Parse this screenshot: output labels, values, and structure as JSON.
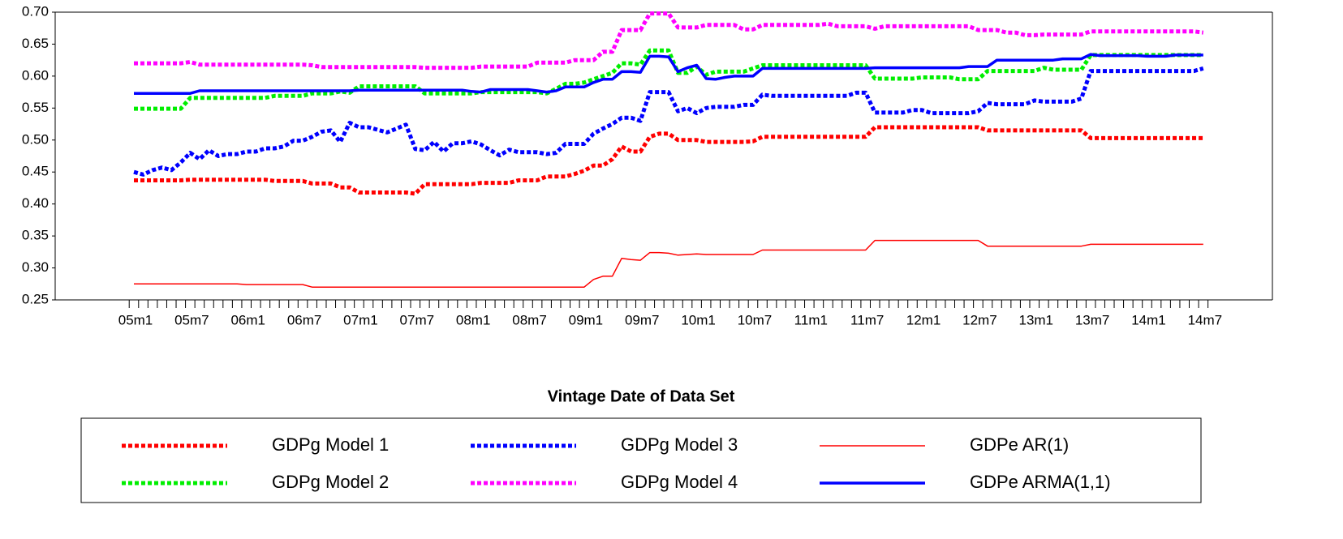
{
  "chart_data": {
    "type": "line",
    "x_label": "Vintage Date of Data Set",
    "categories": [
      "05m1",
      null,
      null,
      null,
      null,
      null,
      "05m7",
      null,
      null,
      null,
      null,
      null,
      "06m1",
      null,
      null,
      null,
      null,
      null,
      "06m7",
      null,
      null,
      null,
      null,
      null,
      "07m1",
      null,
      null,
      null,
      null,
      null,
      "07m7",
      null,
      null,
      null,
      null,
      null,
      "08m1",
      null,
      null,
      null,
      null,
      null,
      "08m7",
      null,
      null,
      null,
      null,
      null,
      "09m1",
      null,
      null,
      null,
      null,
      null,
      "09m7",
      null,
      null,
      null,
      null,
      null,
      "10m1",
      null,
      null,
      null,
      null,
      null,
      "10m7",
      null,
      null,
      null,
      null,
      null,
      "11m1",
      null,
      null,
      null,
      null,
      null,
      "11m7",
      null,
      null,
      null,
      null,
      null,
      "12m1",
      null,
      null,
      null,
      null,
      null,
      "12m7",
      null,
      null,
      null,
      null,
      null,
      "13m1",
      null,
      null,
      null,
      null,
      null,
      "13m7",
      null,
      null,
      null,
      null,
      null,
      "14m1",
      null,
      null,
      null,
      null,
      null,
      "14m7"
    ],
    "ylim": [
      0.25,
      0.7
    ],
    "yticks": [
      0.25,
      {
        "value": 0.3,
        "label": "0.30"
      },
      0.35,
      {
        "value": 0.4,
        "label": "0.40"
      },
      0.45,
      {
        "value": 0.5,
        "label": "0.50"
      },
      0.55,
      {
        "value": 0.6,
        "label": "0.60"
      },
      0.65,
      {
        "value": 0.7,
        "label": "0.70"
      }
    ],
    "grid": false,
    "legend_position": "bottom",
    "series": [
      {
        "name": "GDPg Model 1",
        "color": "#ff0000",
        "line_style": "dotted",
        "values": [
          0.437,
          0.437,
          0.437,
          0.437,
          0.437,
          0.437,
          0.438,
          0.438,
          0.438,
          0.438,
          0.438,
          0.438,
          0.438,
          0.438,
          0.438,
          0.436,
          0.436,
          0.436,
          0.436,
          0.432,
          0.432,
          0.432,
          0.426,
          0.426,
          0.418,
          0.418,
          0.418,
          0.418,
          0.418,
          0.418,
          0.416,
          0.431,
          0.431,
          0.431,
          0.431,
          0.431,
          0.431,
          0.433,
          0.433,
          0.433,
          0.433,
          0.437,
          0.437,
          0.437,
          0.443,
          0.443,
          0.443,
          0.447,
          0.452,
          0.46,
          0.46,
          0.47,
          0.49,
          0.482,
          0.482,
          0.505,
          0.51,
          0.51,
          0.5,
          0.5,
          0.5,
          0.497,
          0.497,
          0.497,
          0.497,
          0.497,
          0.498,
          0.505,
          0.505,
          0.505,
          0.505,
          0.505,
          0.505,
          0.505,
          0.505,
          0.505,
          0.505,
          0.505,
          0.505,
          0.52,
          0.52,
          0.52,
          0.52,
          0.52,
          0.52,
          0.52,
          0.52,
          0.52,
          0.52,
          0.52,
          0.52,
          0.515,
          0.515,
          0.515,
          0.515,
          0.515,
          0.515,
          0.515,
          0.515,
          0.515,
          0.515,
          0.515,
          0.503,
          0.503,
          0.503,
          0.503,
          0.503,
          0.503,
          0.503,
          0.503,
          0.503,
          0.503,
          0.503,
          0.503,
          0.503
        ]
      },
      {
        "name": "GDPg Model 2",
        "color": "#00ee00",
        "line_style": "dotted",
        "values": [
          0.549,
          0.549,
          0.549,
          0.549,
          0.549,
          0.549,
          0.566,
          0.566,
          0.566,
          0.566,
          0.566,
          0.566,
          0.566,
          0.566,
          0.566,
          0.569,
          0.569,
          0.569,
          0.569,
          0.573,
          0.573,
          0.573,
          0.576,
          0.574,
          0.584,
          0.584,
          0.584,
          0.584,
          0.584,
          0.584,
          0.584,
          0.573,
          0.573,
          0.573,
          0.573,
          0.573,
          0.573,
          0.575,
          0.575,
          0.575,
          0.575,
          0.575,
          0.575,
          0.575,
          0.573,
          0.58,
          0.588,
          0.588,
          0.59,
          0.595,
          0.6,
          0.605,
          0.62,
          0.62,
          0.618,
          0.64,
          0.64,
          0.64,
          0.605,
          0.605,
          0.615,
          0.602,
          0.607,
          0.607,
          0.607,
          0.607,
          0.612,
          0.617,
          0.617,
          0.617,
          0.617,
          0.617,
          0.617,
          0.617,
          0.617,
          0.617,
          0.617,
          0.617,
          0.617,
          0.596,
          0.596,
          0.596,
          0.596,
          0.596,
          0.598,
          0.598,
          0.598,
          0.598,
          0.595,
          0.595,
          0.595,
          0.608,
          0.608,
          0.608,
          0.608,
          0.608,
          0.608,
          0.613,
          0.61,
          0.61,
          0.61,
          0.61,
          0.633,
          0.633,
          0.633,
          0.633,
          0.633,
          0.633,
          0.633,
          0.633,
          0.633,
          0.633,
          0.633,
          0.633,
          0.633
        ]
      },
      {
        "name": "GDPg Model 3",
        "color": "#0000ff",
        "line_style": "dotted",
        "values": [
          0.45,
          0.446,
          0.453,
          0.457,
          0.453,
          0.465,
          0.48,
          0.47,
          0.484,
          0.475,
          0.478,
          0.478,
          0.482,
          0.482,
          0.487,
          0.487,
          0.49,
          0.499,
          0.499,
          0.505,
          0.513,
          0.515,
          0.497,
          0.527,
          0.52,
          0.52,
          0.516,
          0.512,
          0.518,
          0.524,
          0.486,
          0.484,
          0.497,
          0.482,
          0.495,
          0.495,
          0.498,
          0.493,
          0.484,
          0.476,
          0.485,
          0.481,
          0.481,
          0.481,
          0.478,
          0.48,
          0.494,
          0.494,
          0.494,
          0.51,
          0.518,
          0.525,
          0.535,
          0.535,
          0.53,
          0.575,
          0.575,
          0.575,
          0.545,
          0.55,
          0.542,
          0.55,
          0.552,
          0.552,
          0.552,
          0.555,
          0.555,
          0.571,
          0.569,
          0.569,
          0.569,
          0.569,
          0.569,
          0.569,
          0.569,
          0.569,
          0.569,
          0.574,
          0.574,
          0.543,
          0.543,
          0.543,
          0.543,
          0.547,
          0.547,
          0.542,
          0.542,
          0.542,
          0.542,
          0.542,
          0.545,
          0.558,
          0.556,
          0.556,
          0.556,
          0.556,
          0.562,
          0.56,
          0.56,
          0.56,
          0.56,
          0.565,
          0.608,
          0.608,
          0.608,
          0.608,
          0.608,
          0.608,
          0.608,
          0.608,
          0.608,
          0.608,
          0.608,
          0.608,
          0.612
        ]
      },
      {
        "name": "GDPg Model 4",
        "color": "#ff00ff",
        "line_style": "dotted",
        "values": [
          0.62,
          0.62,
          0.62,
          0.62,
          0.62,
          0.62,
          0.622,
          0.618,
          0.618,
          0.618,
          0.618,
          0.618,
          0.618,
          0.618,
          0.618,
          0.618,
          0.618,
          0.618,
          0.618,
          0.617,
          0.614,
          0.614,
          0.614,
          0.614,
          0.614,
          0.614,
          0.614,
          0.614,
          0.614,
          0.614,
          0.614,
          0.613,
          0.613,
          0.613,
          0.613,
          0.613,
          0.613,
          0.615,
          0.615,
          0.615,
          0.615,
          0.615,
          0.615,
          0.621,
          0.621,
          0.621,
          0.621,
          0.625,
          0.625,
          0.625,
          0.638,
          0.638,
          0.672,
          0.672,
          0.672,
          0.698,
          0.698,
          0.698,
          0.676,
          0.676,
          0.676,
          0.68,
          0.68,
          0.68,
          0.68,
          0.673,
          0.673,
          0.68,
          0.68,
          0.68,
          0.68,
          0.68,
          0.68,
          0.68,
          0.682,
          0.678,
          0.678,
          0.678,
          0.678,
          0.674,
          0.678,
          0.678,
          0.678,
          0.678,
          0.678,
          0.678,
          0.678,
          0.678,
          0.678,
          0.678,
          0.672,
          0.672,
          0.672,
          0.668,
          0.668,
          0.664,
          0.664,
          0.665,
          0.665,
          0.665,
          0.665,
          0.665,
          0.67,
          0.67,
          0.67,
          0.67,
          0.67,
          0.67,
          0.67,
          0.67,
          0.67,
          0.67,
          0.67,
          0.67,
          0.668
        ]
      },
      {
        "name": "GDPe AR(1)",
        "color": "#ff0000",
        "line_style": "thin",
        "values": [
          0.275,
          0.275,
          0.275,
          0.275,
          0.275,
          0.275,
          0.275,
          0.275,
          0.275,
          0.275,
          0.275,
          0.275,
          0.274,
          0.274,
          0.274,
          0.274,
          0.274,
          0.274,
          0.274,
          0.27,
          0.27,
          0.27,
          0.27,
          0.27,
          0.27,
          0.27,
          0.27,
          0.27,
          0.27,
          0.27,
          0.27,
          0.27,
          0.27,
          0.27,
          0.27,
          0.27,
          0.27,
          0.27,
          0.27,
          0.27,
          0.27,
          0.27,
          0.27,
          0.27,
          0.27,
          0.27,
          0.27,
          0.27,
          0.27,
          0.282,
          0.287,
          0.287,
          0.315,
          0.313,
          0.312,
          0.324,
          0.324,
          0.323,
          0.32,
          0.321,
          0.322,
          0.321,
          0.321,
          0.321,
          0.321,
          0.321,
          0.321,
          0.328,
          0.328,
          0.328,
          0.328,
          0.328,
          0.328,
          0.328,
          0.328,
          0.328,
          0.328,
          0.328,
          0.328,
          0.343,
          0.343,
          0.343,
          0.343,
          0.343,
          0.343,
          0.343,
          0.343,
          0.343,
          0.343,
          0.343,
          0.343,
          0.334,
          0.334,
          0.334,
          0.334,
          0.334,
          0.334,
          0.334,
          0.334,
          0.334,
          0.334,
          0.334,
          0.337,
          0.337,
          0.337,
          0.337,
          0.337,
          0.337,
          0.337,
          0.337,
          0.337,
          0.337,
          0.337,
          0.337,
          0.337
        ]
      },
      {
        "name": "GDPe ARMA(1,1)",
        "color": "#0000ff",
        "line_style": "solid",
        "values": [
          0.573,
          0.573,
          0.573,
          0.573,
          0.573,
          0.573,
          0.573,
          0.577,
          0.577,
          0.577,
          0.577,
          0.577,
          0.577,
          0.577,
          0.577,
          0.577,
          0.577,
          0.577,
          0.577,
          0.577,
          0.577,
          0.577,
          0.577,
          0.577,
          0.578,
          0.578,
          0.578,
          0.578,
          0.578,
          0.578,
          0.578,
          0.578,
          0.578,
          0.578,
          0.578,
          0.578,
          0.576,
          0.575,
          0.579,
          0.579,
          0.579,
          0.579,
          0.579,
          0.577,
          0.575,
          0.577,
          0.583,
          0.583,
          0.583,
          0.59,
          0.595,
          0.595,
          0.607,
          0.607,
          0.606,
          0.631,
          0.631,
          0.63,
          0.607,
          0.613,
          0.617,
          0.596,
          0.595,
          0.598,
          0.6,
          0.6,
          0.6,
          0.612,
          0.612,
          0.612,
          0.612,
          0.612,
          0.612,
          0.612,
          0.612,
          0.612,
          0.612,
          0.612,
          0.612,
          0.613,
          0.613,
          0.613,
          0.613,
          0.613,
          0.613,
          0.613,
          0.613,
          0.613,
          0.613,
          0.615,
          0.615,
          0.615,
          0.625,
          0.625,
          0.625,
          0.625,
          0.625,
          0.625,
          0.625,
          0.627,
          0.627,
          0.627,
          0.634,
          0.632,
          0.632,
          0.632,
          0.632,
          0.632,
          0.631,
          0.631,
          0.631,
          0.633,
          0.633,
          0.633,
          0.633
        ]
      }
    ]
  }
}
